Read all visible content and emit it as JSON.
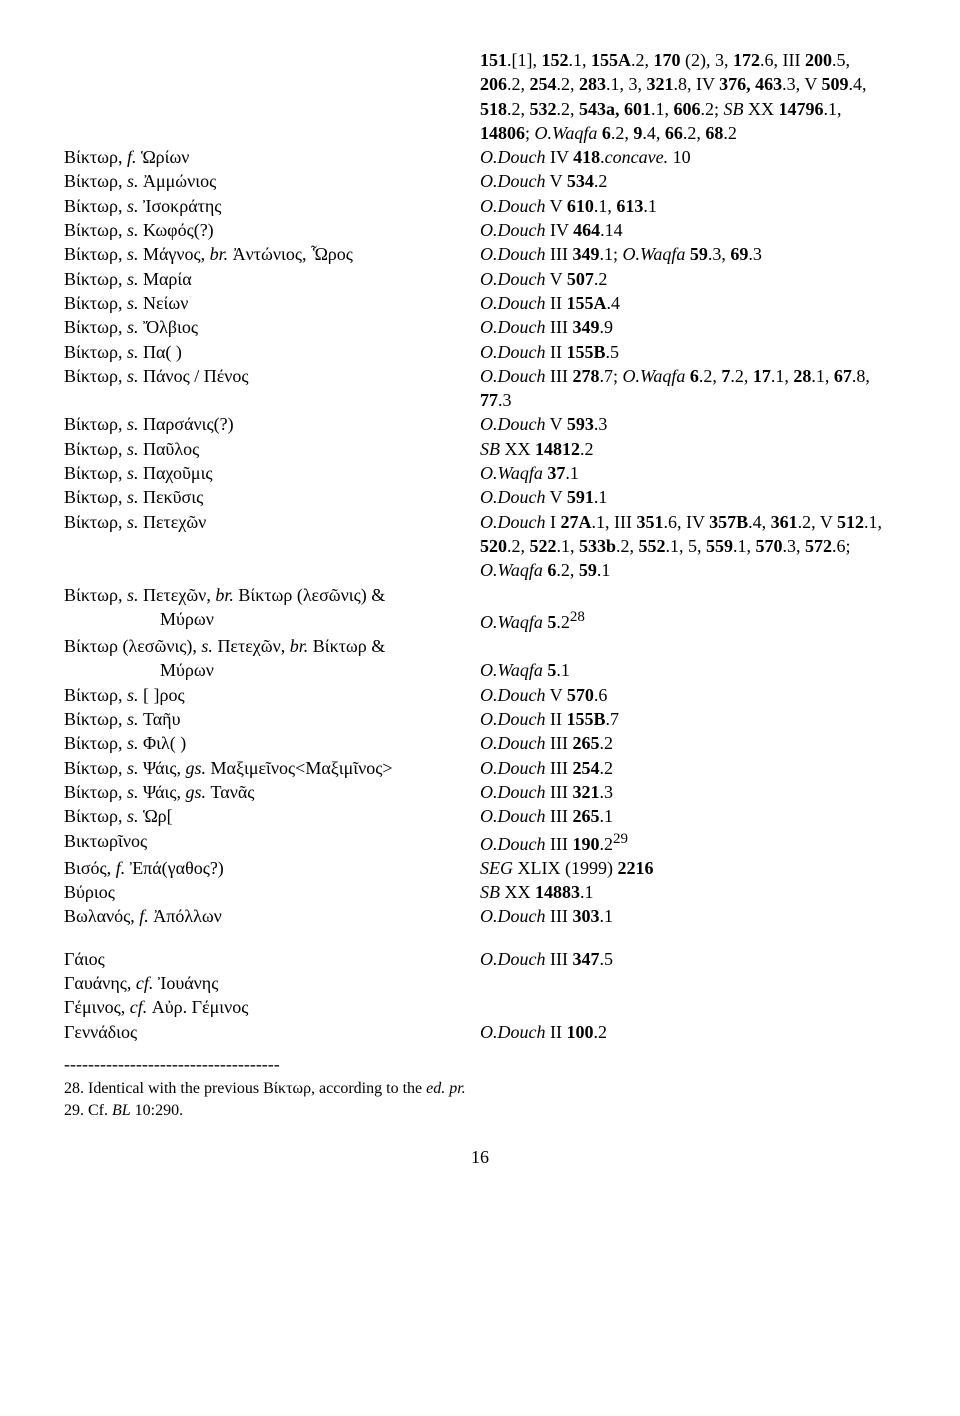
{
  "header_refs": [
    "<b>151</b>.[1], <b>152</b>.1, <b>155A</b>.2, <b>170</b> (2), 3, <b>172</b>.6, III <b>200</b>.5, <b>206</b>.2, <b>254</b>.2, <b>283</b>.1, 3, <b>321</b>.8, IV <b>376, 463</b>.3, V <b>509</b>.4, <b>518</b>.2, <b>532</b>.2, <b>543a, 601</b>.1, <b>606</b>.2; <i>SB</i> XX <b>14796</b>.1, <b>14806</b>; <i>O.Waqfa</i> <b>6</b>.2, <b>9</b>.4, <b>66</b>.2, <b>68</b>.2"
  ],
  "rows": [
    {
      "l": "Βίκτωρ, <i>f.</i> Ὡρίων",
      "r": "<i>O.Douch</i> IV <b>418</b>.<i>concave.</i> 10"
    },
    {
      "l": "Βίκτωρ, <i>s.</i> Ἀμμώνιος",
      "r": "<i>O.Douch</i> V <b>534</b>.2"
    },
    {
      "l": "Βίκτωρ, <i>s.</i> Ἰσοκράτης",
      "r": "<i>O.Douch</i> V <b>610</b>.1, <b>613</b>.1"
    },
    {
      "l": "Βίκτωρ, <i>s.</i> Κωφός(?)",
      "r": "<i>O.Douch</i> IV <b>464</b>.14"
    },
    {
      "l": "Βίκτωρ, <i>s.</i> Μάγνος, <i>br.</i> Ἀντώνιος, Ὧρος",
      "r": "<i>O.Douch</i> III <b>349</b>.1; <i>O.Waqfa</i> <b>59</b>.3, <b>69</b>.3"
    },
    {
      "l": "Βίκτωρ, <i>s.</i> Μαρία",
      "r": "<i>O.Douch</i> V <b>507</b>.2"
    },
    {
      "l": "Βίκτωρ, <i>s.</i> Νείων",
      "r": "<i>O.Douch</i> II <b>155A</b>.4"
    },
    {
      "l": "Βίκτωρ, <i>s.</i> Ὄλβιος",
      "r": "<i>O.Douch</i> III <b>349</b>.9"
    },
    {
      "l": "Βίκτωρ, <i>s.</i> Πα( )",
      "r": "<i>O.Douch</i> II <b>155B</b>.5"
    },
    {
      "l": "Βίκτωρ, <i>s.</i> Πάνος / Πένος",
      "r": "<i>O.Douch</i> III <b>278</b>.7; <i>O.Waqfa</i> <b>6</b>.2, <b>7</b>.2, <b>17</b>.1, <b>28</b>.1, <b>67</b>.8, <b>77</b>.3"
    },
    {
      "l": "Βίκτωρ, <i>s.</i> Παρσάνις(?)",
      "r": "<i>O.Douch</i> V <b>593</b>.3"
    },
    {
      "l": "Βίκτωρ, <i>s.</i> Παῦλος",
      "r": "<i>SB</i> XX <b>14812</b>.2"
    },
    {
      "l": "Βίκτωρ, <i>s.</i> Παχοῦμις",
      "r": "<i>O.Waqfa</i> <b>37</b>.1"
    },
    {
      "l": "Βίκτωρ, <i>s.</i> Πεκῦσις",
      "r": "<i>O.Douch</i> V <b>591</b>.1"
    },
    {
      "l": "Βίκτωρ, <i>s.</i> Πετεχῶν",
      "r": "<i>O.Douch</i> I <b>27A</b>.1, III <b>351</b>.6, IV <b>357B</b>.4, <b>361</b>.2, V <b>512</b>.1, <b>520</b>.2, <b>522</b>.1, <b>533b</b>.2, <b>552</b>.1, 5, <b>559</b>.1, <b>570</b>.3, <b>572</b>.6; <i>O.Waqfa</i> <b>6</b>.2, <b>59</b>.1"
    },
    {
      "l": "Βίκτωρ, <i>s.</i> Πετεχῶν, <i>br.</i> Βίκτωρ (λεσῶνις) &",
      "r": ""
    },
    {
      "l": "Μύρων",
      "r": "<i>O.Waqfa</i> <b>5</b>.2<sup>28</sup>",
      "indent": true
    },
    {
      "l": "Βίκτωρ (λεσῶνις), <i>s.</i> Πετεχῶν, <i>br.</i> Βίκτωρ &",
      "r": ""
    },
    {
      "l": "Μύρων",
      "r": "<i>O.Waqfa</i> <b>5</b>.1",
      "indent": true
    },
    {
      "l": "Βίκτωρ, <i>s.</i> [ ]ρος",
      "r": "<i>O.Douch</i> V <b>570</b>.6"
    },
    {
      "l": "Βίκτωρ, <i>s.</i> Ταῆυ",
      "r": "<i>O.Douch</i> II <b>155B</b>.7"
    },
    {
      "l": "Βίκτωρ, <i>s.</i> Φιλ( )",
      "r": "<i>O.Douch</i> III <b>265</b>.2"
    },
    {
      "l": "Βίκτωρ, <i>s.</i> Ψάις, <i>gs.</i> Μαξιμεῖνος&lt;Μαξιμῖνος&gt;",
      "r": "<i>O.Douch</i> III <b>254</b>.2"
    },
    {
      "l": "Βίκτωρ, <i>s.</i> Ψάις, <i>gs.</i> Τανᾶς",
      "r": "<i>O.Douch</i> III <b>321</b>.3"
    },
    {
      "l": "Βίκτωρ, <i>s.</i> Ὡρ[",
      "r": "<i>O.Douch</i> III <b>265</b>.1"
    },
    {
      "l": "Βικτωρῖνος",
      "r": "<i>O.Douch</i> III <b>190</b>.2<sup>29</sup>"
    },
    {
      "l": "Βισός, <i>f.</i> Ἐπά(γαθος?)",
      "r": "<i>SEG</i> XLIX (1999) <b>2216</b>"
    },
    {
      "l": "Βύριος",
      "r": "<i>SB</i> XX <b>14883</b>.1"
    },
    {
      "l": "Βωλανός, <i>f.</i> Ἀπόλλων",
      "r": "<i>O.Douch</i> III <b>303</b>.1"
    }
  ],
  "rows2": [
    {
      "l": "Γάιος",
      "r": "<i>O.Douch</i> III <b>347</b>.5"
    },
    {
      "l": "Γαυάνης, <i>cf.</i> Ἰουάνης",
      "r": ""
    },
    {
      "l": "Γέμινος, <i>cf.</i> Αὐρ. Γέμινος",
      "r": ""
    },
    {
      "l": "Γεννάδιος",
      "r": "<i>O.Douch</i> II <b>100</b>.2"
    }
  ],
  "footnote_sep": "------------------------------------",
  "footnotes": [
    "28. Identical with the previous Βίκτωρ, according to the <i>ed. pr.</i>",
    "29. Cf. <i>BL</i> 10:290."
  ],
  "page_number": "16"
}
